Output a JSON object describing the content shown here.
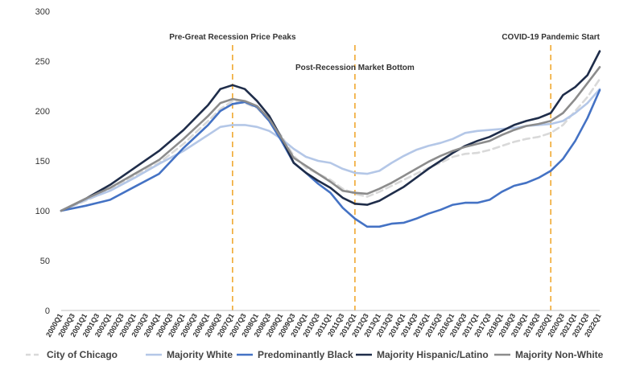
{
  "chart_data": {
    "type": "line",
    "title": "",
    "xlabel": "",
    "ylabel": "",
    "ylim": [
      0,
      300
    ],
    "yticks": [
      0,
      50,
      100,
      150,
      200,
      250,
      300
    ],
    "grid": false,
    "legend_position": "bottom",
    "x_start": "2000Q1",
    "x_end": "2022Q1",
    "x_tick_labels": [
      "2000Q1",
      "2000Q3",
      "2001Q1",
      "2001Q3",
      "2002Q1",
      "2002Q3",
      "2003Q1",
      "2003Q3",
      "2004Q1",
      "2004Q3",
      "2005Q1",
      "2005Q3",
      "2006Q1",
      "2006Q3",
      "2007Q1",
      "2007Q3",
      "2008Q1",
      "2008Q3",
      "2009Q1",
      "2009Q3",
      "2010Q1",
      "2010Q3",
      "2011Q1",
      "2011Q3",
      "2012Q1",
      "2012Q3",
      "2013Q1",
      "2013Q3",
      "2014Q1",
      "2014Q3",
      "2015Q1",
      "2015Q3",
      "2016Q1",
      "2016Q3",
      "2017Q1",
      "2017Q3",
      "2018Q1",
      "2018Q3",
      "2019Q1",
      "2019Q3",
      "2020Q1",
      "2020Q3",
      "2021Q1",
      "2021Q3",
      "2022Q1"
    ],
    "annotations": [
      {
        "label": "Pre-Great Recession Price Peaks",
        "x": "2007Q1"
      },
      {
        "label": "Post-Recession Market Bottom",
        "x": "2012Q1"
      },
      {
        "label": "COVID-19 Pandemic Start",
        "x": "2020Q1"
      }
    ],
    "series": [
      {
        "name": "City of Chicago",
        "color": "#d9d9d9",
        "dash": "8,5",
        "anchors": [
          [
            "2000Q1",
            100
          ],
          [
            "2001Q1",
            110
          ],
          [
            "2002Q1",
            121
          ],
          [
            "2003Q1",
            135
          ],
          [
            "2004Q1",
            148
          ],
          [
            "2005Q1",
            167
          ],
          [
            "2006Q1",
            190
          ],
          [
            "2006Q3",
            202
          ],
          [
            "2007Q1",
            210
          ],
          [
            "2007Q3",
            208
          ],
          [
            "2008Q1",
            203
          ],
          [
            "2008Q3",
            190
          ],
          [
            "2009Q1",
            175
          ],
          [
            "2009Q3",
            155
          ],
          [
            "2010Q1",
            143
          ],
          [
            "2010Q3",
            137
          ],
          [
            "2011Q1",
            131
          ],
          [
            "2011Q3",
            122
          ],
          [
            "2012Q1",
            117
          ],
          [
            "2012Q3",
            114
          ],
          [
            "2013Q1",
            119
          ],
          [
            "2013Q3",
            125
          ],
          [
            "2014Q1",
            131
          ],
          [
            "2014Q3",
            137
          ],
          [
            "2015Q1",
            143
          ],
          [
            "2015Q3",
            148
          ],
          [
            "2016Q1",
            154
          ],
          [
            "2016Q3",
            157
          ],
          [
            "2017Q1",
            158
          ],
          [
            "2017Q3",
            161
          ],
          [
            "2018Q1",
            165
          ],
          [
            "2018Q3",
            169
          ],
          [
            "2019Q1",
            172
          ],
          [
            "2019Q3",
            174
          ],
          [
            "2020Q1",
            178
          ],
          [
            "2020Q3",
            186
          ],
          [
            "2021Q1",
            200
          ],
          [
            "2021Q3",
            214
          ],
          [
            "2022Q1",
            232
          ]
        ]
      },
      {
        "name": "Majority White",
        "color": "#b4c7e7",
        "dash": "",
        "anchors": [
          [
            "2000Q1",
            100
          ],
          [
            "2001Q1",
            111
          ],
          [
            "2002Q1",
            120
          ],
          [
            "2003Q1",
            133
          ],
          [
            "2004Q1",
            147
          ],
          [
            "2005Q1",
            160
          ],
          [
            "2006Q1",
            176
          ],
          [
            "2006Q3",
            184
          ],
          [
            "2007Q1",
            186
          ],
          [
            "2007Q3",
            186
          ],
          [
            "2008Q1",
            184
          ],
          [
            "2008Q3",
            180
          ],
          [
            "2009Q1",
            172
          ],
          [
            "2009Q3",
            162
          ],
          [
            "2010Q1",
            154
          ],
          [
            "2010Q3",
            150
          ],
          [
            "2011Q1",
            148
          ],
          [
            "2011Q3",
            142
          ],
          [
            "2012Q1",
            138
          ],
          [
            "2012Q3",
            137
          ],
          [
            "2013Q1",
            140
          ],
          [
            "2013Q3",
            148
          ],
          [
            "2014Q1",
            155
          ],
          [
            "2014Q3",
            161
          ],
          [
            "2015Q1",
            165
          ],
          [
            "2015Q3",
            168
          ],
          [
            "2016Q1",
            172
          ],
          [
            "2016Q3",
            178
          ],
          [
            "2017Q1",
            180
          ],
          [
            "2017Q3",
            181
          ],
          [
            "2018Q1",
            182
          ],
          [
            "2018Q3",
            183
          ],
          [
            "2019Q1",
            185
          ],
          [
            "2019Q3",
            186
          ],
          [
            "2020Q1",
            187
          ],
          [
            "2020Q3",
            190
          ],
          [
            "2021Q1",
            198
          ],
          [
            "2021Q3",
            208
          ],
          [
            "2022Q1",
            222
          ]
        ]
      },
      {
        "name": "Predominantly Black",
        "color": "#4472c4",
        "dash": "",
        "anchors": [
          [
            "2000Q1",
            100
          ],
          [
            "2001Q1",
            105
          ],
          [
            "2002Q1",
            111
          ],
          [
            "2003Q1",
            124
          ],
          [
            "2004Q1",
            137
          ],
          [
            "2005Q1",
            163
          ],
          [
            "2006Q1",
            186
          ],
          [
            "2006Q3",
            200
          ],
          [
            "2007Q1",
            207
          ],
          [
            "2007Q3",
            209
          ],
          [
            "2008Q1",
            204
          ],
          [
            "2008Q3",
            190
          ],
          [
            "2009Q1",
            170
          ],
          [
            "2009Q3",
            148
          ],
          [
            "2010Q1",
            138
          ],
          [
            "2010Q3",
            127
          ],
          [
            "2011Q1",
            118
          ],
          [
            "2011Q3",
            103
          ],
          [
            "2012Q1",
            92
          ],
          [
            "2012Q3",
            84
          ],
          [
            "2013Q1",
            84
          ],
          [
            "2013Q3",
            87
          ],
          [
            "2014Q1",
            88
          ],
          [
            "2014Q3",
            92
          ],
          [
            "2015Q1",
            97
          ],
          [
            "2015Q3",
            101
          ],
          [
            "2016Q1",
            106
          ],
          [
            "2016Q3",
            108
          ],
          [
            "2017Q1",
            108
          ],
          [
            "2017Q3",
            111
          ],
          [
            "2018Q1",
            119
          ],
          [
            "2018Q3",
            125
          ],
          [
            "2019Q1",
            128
          ],
          [
            "2019Q3",
            133
          ],
          [
            "2020Q1",
            140
          ],
          [
            "2020Q3",
            152
          ],
          [
            "2021Q1",
            170
          ],
          [
            "2021Q3",
            193
          ],
          [
            "2022Q1",
            221
          ]
        ]
      },
      {
        "name": "Majority Hispanic/Latino",
        "color": "#1f2d4a",
        "dash": "",
        "anchors": [
          [
            "2000Q1",
            100
          ],
          [
            "2001Q1",
            112
          ],
          [
            "2002Q1",
            126
          ],
          [
            "2003Q1",
            143
          ],
          [
            "2004Q1",
            160
          ],
          [
            "2005Q1",
            181
          ],
          [
            "2006Q1",
            206
          ],
          [
            "2006Q3",
            222
          ],
          [
            "2007Q1",
            226
          ],
          [
            "2007Q3",
            222
          ],
          [
            "2008Q1",
            210
          ],
          [
            "2008Q3",
            195
          ],
          [
            "2009Q1",
            173
          ],
          [
            "2009Q3",
            148
          ],
          [
            "2010Q1",
            138
          ],
          [
            "2010Q3",
            130
          ],
          [
            "2011Q1",
            123
          ],
          [
            "2011Q3",
            113
          ],
          [
            "2012Q1",
            107
          ],
          [
            "2012Q3",
            106
          ],
          [
            "2013Q1",
            110
          ],
          [
            "2013Q3",
            117
          ],
          [
            "2014Q1",
            124
          ],
          [
            "2014Q3",
            133
          ],
          [
            "2015Q1",
            142
          ],
          [
            "2015Q3",
            150
          ],
          [
            "2016Q1",
            158
          ],
          [
            "2016Q3",
            165
          ],
          [
            "2017Q1",
            170
          ],
          [
            "2017Q3",
            174
          ],
          [
            "2018Q1",
            180
          ],
          [
            "2018Q3",
            186
          ],
          [
            "2019Q1",
            190
          ],
          [
            "2019Q3",
            193
          ],
          [
            "2020Q1",
            198
          ],
          [
            "2020Q3",
            216
          ],
          [
            "2021Q1",
            224
          ],
          [
            "2021Q3",
            236
          ],
          [
            "2022Q1",
            260
          ]
        ]
      },
      {
        "name": "Majority Non-White",
        "color": "#8c8c8c",
        "dash": "",
        "anchors": [
          [
            "2000Q1",
            100
          ],
          [
            "2001Q1",
            112
          ],
          [
            "2002Q1",
            123
          ],
          [
            "2003Q1",
            137
          ],
          [
            "2004Q1",
            151
          ],
          [
            "2005Q1",
            172
          ],
          [
            "2006Q1",
            195
          ],
          [
            "2006Q3",
            208
          ],
          [
            "2007Q1",
            212
          ],
          [
            "2007Q3",
            210
          ],
          [
            "2008Q1",
            205
          ],
          [
            "2008Q3",
            192
          ],
          [
            "2009Q1",
            173
          ],
          [
            "2009Q3",
            153
          ],
          [
            "2010Q1",
            145
          ],
          [
            "2010Q3",
            137
          ],
          [
            "2011Q1",
            129
          ],
          [
            "2011Q3",
            120
          ],
          [
            "2012Q1",
            118
          ],
          [
            "2012Q3",
            117
          ],
          [
            "2013Q1",
            122
          ],
          [
            "2013Q3",
            128
          ],
          [
            "2014Q1",
            135
          ],
          [
            "2014Q3",
            142
          ],
          [
            "2015Q1",
            149
          ],
          [
            "2015Q3",
            155
          ],
          [
            "2016Q1",
            160
          ],
          [
            "2016Q3",
            164
          ],
          [
            "2017Q1",
            167
          ],
          [
            "2017Q3",
            170
          ],
          [
            "2018Q1",
            176
          ],
          [
            "2018Q3",
            181
          ],
          [
            "2019Q1",
            185
          ],
          [
            "2019Q3",
            187
          ],
          [
            "2020Q1",
            190
          ],
          [
            "2020Q3",
            198
          ],
          [
            "2021Q1",
            212
          ],
          [
            "2021Q3",
            228
          ],
          [
            "2022Q1",
            244
          ]
        ]
      }
    ]
  }
}
